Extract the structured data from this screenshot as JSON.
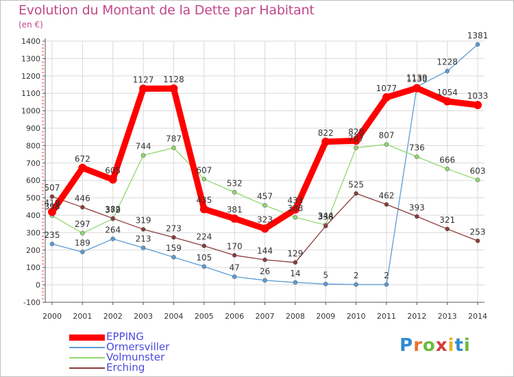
{
  "title": "Evolution du Montant de la Dette par Habitant",
  "unit_label": "(en €)",
  "logo": {
    "letters": [
      "P",
      "r",
      "o",
      "x",
      "i",
      "t",
      "i"
    ],
    "colors": [
      "#2e8bd0",
      "#e8742a",
      "#6dbb3c",
      "#d63a3a",
      "#e8b02a",
      "#2e8bd0",
      "#6dbb3c"
    ]
  },
  "chart_data": {
    "type": "line",
    "title": "Evolution du Montant de la Dette par Habitant",
    "ylabel": "(en €)",
    "xlabel": "",
    "ylim": [
      -100,
      1400
    ],
    "yticks": [
      -100,
      0,
      100,
      200,
      300,
      400,
      500,
      600,
      700,
      800,
      900,
      1000,
      1100,
      1200,
      1300,
      1400
    ],
    "grid": true,
    "legend_position": "bottom-left",
    "x": [
      "2000",
      "2001",
      "2002",
      "2003",
      "2004",
      "2005",
      "2006",
      "2007",
      "2008",
      "2009",
      "2010",
      "2011",
      "2012",
      "2013",
      "2014"
    ],
    "series": [
      {
        "name": "EPPING",
        "color": "#ff0000",
        "values": [
          419,
          672,
          605,
          1127,
          1128,
          435,
          381,
          323,
          433,
          822,
          828,
          1077,
          1130,
          1054,
          1033
        ]
      },
      {
        "name": "Ormersviller",
        "color": "#5b9bd5",
        "values": [
          235,
          189,
          264,
          213,
          159,
          105,
          47,
          26,
          14,
          5,
          2,
          2,
          1139,
          1228,
          1381
        ]
      },
      {
        "name": "Volmunster",
        "color": "#90d86e",
        "values": [
          398,
          297,
          379,
          744,
          787,
          607,
          532,
          457,
          388,
          344,
          787,
          807,
          736,
          666,
          603
        ]
      },
      {
        "name": "Erching",
        "color": "#8b3a3a",
        "values": [
          507,
          446,
          382,
          319,
          273,
          224,
          170,
          144,
          129,
          338,
          525,
          462,
          393,
          321,
          253
        ]
      }
    ]
  }
}
